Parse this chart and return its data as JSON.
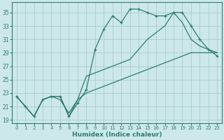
{
  "xlabel": "Humidex (Indice chaleur)",
  "background_color": "#cce8e8",
  "grid_color": "#aacccc",
  "line_color": "#2e7d6e",
  "xlim": [
    -0.5,
    23.5
  ],
  "ylim": [
    18.5,
    36.5
  ],
  "yticks": [
    19,
    21,
    23,
    25,
    27,
    29,
    31,
    33,
    35
  ],
  "xticks": [
    0,
    1,
    2,
    3,
    4,
    5,
    6,
    7,
    8,
    9,
    10,
    11,
    12,
    13,
    14,
    15,
    16,
    17,
    18,
    19,
    20,
    21,
    22,
    23
  ],
  "line1_x": [
    0,
    1,
    2,
    3,
    4,
    5,
    6,
    7,
    8,
    9,
    10,
    11,
    12,
    13,
    14,
    15,
    16,
    17,
    18,
    19,
    20,
    21,
    22,
    23
  ],
  "line1_y": [
    22.5,
    21.0,
    19.5,
    22.0,
    22.5,
    22.5,
    19.5,
    21.5,
    23.5,
    29.5,
    32.5,
    34.5,
    33.5,
    35.5,
    35.5,
    35.0,
    34.5,
    34.5,
    35.0,
    35.0,
    33.0,
    31.0,
    29.5,
    28.5
  ],
  "line2_x": [
    0,
    1,
    2,
    3,
    4,
    5,
    6,
    7,
    8,
    9,
    10,
    11,
    12,
    13,
    14,
    15,
    16,
    17,
    18,
    19,
    20,
    21,
    22,
    23
  ],
  "line2_y": [
    22.5,
    21.0,
    19.5,
    22.0,
    22.5,
    22.5,
    19.5,
    22.0,
    25.5,
    26.0,
    26.5,
    27.0,
    27.5,
    28.0,
    29.5,
    31.0,
    32.0,
    33.0,
    35.0,
    33.5,
    31.0,
    30.0,
    29.5,
    29.0
  ],
  "line3_x": [
    0,
    1,
    2,
    3,
    4,
    5,
    6,
    7,
    8,
    9,
    10,
    11,
    12,
    13,
    14,
    15,
    16,
    17,
    18,
    19,
    20,
    21,
    22,
    23
  ],
  "line3_y": [
    22.5,
    21.0,
    19.5,
    22.0,
    22.5,
    22.0,
    20.0,
    22.0,
    23.0,
    23.5,
    24.0,
    24.5,
    25.0,
    25.5,
    26.0,
    26.5,
    27.0,
    27.5,
    28.0,
    28.5,
    29.0,
    29.0,
    29.0,
    29.0
  ]
}
